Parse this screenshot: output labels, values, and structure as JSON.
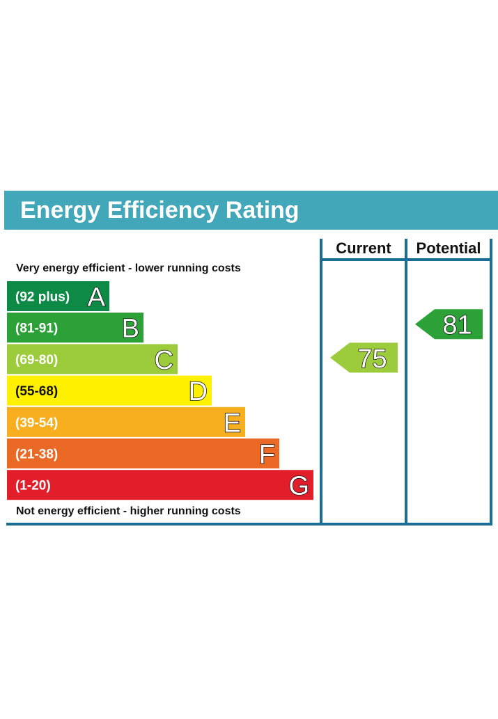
{
  "banner": {
    "title": "Energy Efficiency Rating"
  },
  "chart_data": {
    "type": "bar",
    "title": "Energy Efficiency Rating",
    "top_note": "Very energy efficient - lower running costs",
    "bottom_note": "Not energy efficient - higher running costs",
    "bands": [
      {
        "letter": "A",
        "range": "(92 plus)",
        "color": "#0e8a47"
      },
      {
        "letter": "B",
        "range": "(81-91)",
        "color": "#2ca138"
      },
      {
        "letter": "C",
        "range": "(69-80)",
        "color": "#9ccb3c"
      },
      {
        "letter": "D",
        "range": "(55-68)",
        "color": "#fff100"
      },
      {
        "letter": "E",
        "range": "(39-54)",
        "color": "#f7ae1f"
      },
      {
        "letter": "F",
        "range": "(21-38)",
        "color": "#ea6a25"
      },
      {
        "letter": "G",
        "range": "(1-20)",
        "color": "#e31e2b"
      }
    ],
    "columns": [
      {
        "header": "Current",
        "value": 75,
        "band": "C",
        "color": "#9ccb3c"
      },
      {
        "header": "Potential",
        "value": 81,
        "band": "B",
        "color": "#2ca138"
      }
    ],
    "frame_color": "#1a6d94"
  }
}
